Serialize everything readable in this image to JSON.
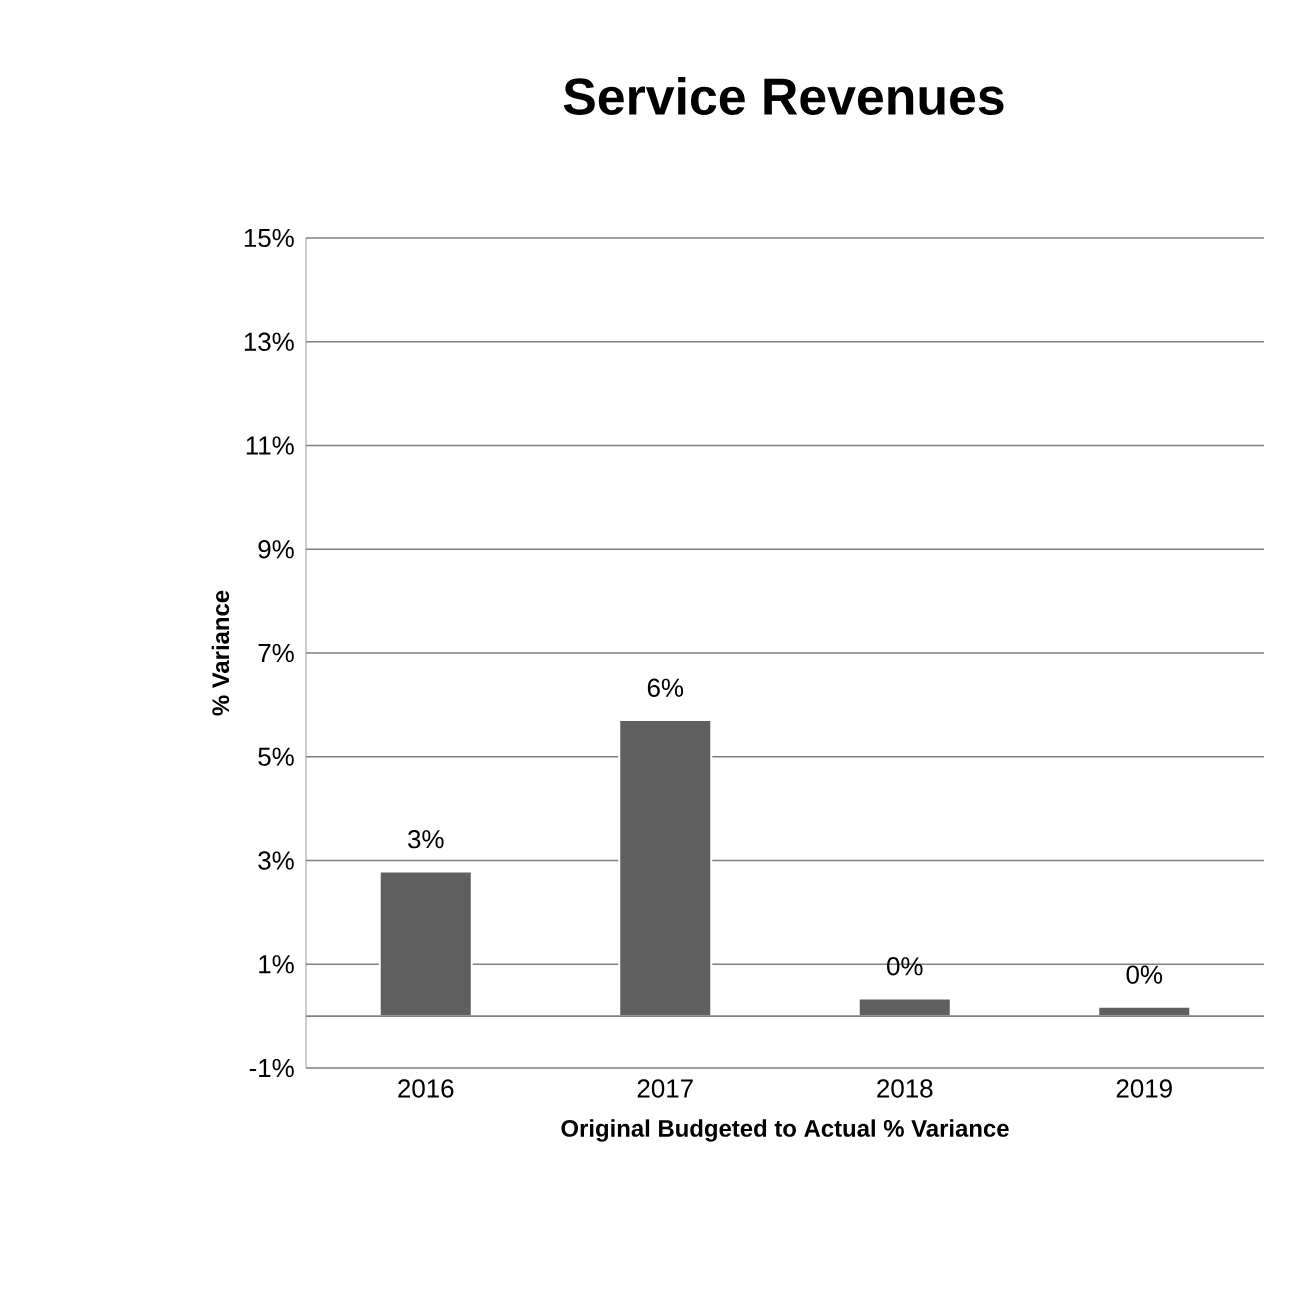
{
  "chart_data": {
    "type": "bar",
    "title": "Service Revenues",
    "xlabel": "Original Budgeted to Actual % Variance",
    "ylabel": "% Variance",
    "categories": [
      "2016",
      "2017",
      "2018",
      "2019"
    ],
    "values": [
      2.79,
      5.71,
      0.34,
      0.18
    ],
    "value_labels": [
      "3%",
      "6%",
      "0%",
      "0%"
    ],
    "color": "#5f5f5f",
    "ylim": [
      -1,
      15
    ],
    "yticks": [
      {
        "value": -1,
        "label": "-1%"
      },
      {
        "value": 1,
        "label": "1%"
      },
      {
        "value": 3,
        "label": "3%"
      },
      {
        "value": 5,
        "label": "5%"
      },
      {
        "value": 7,
        "label": "7%"
      },
      {
        "value": 9,
        "label": "9%"
      },
      {
        "value": 11,
        "label": "11%"
      },
      {
        "value": 13,
        "label": "13%"
      },
      {
        "value": 15,
        "label": "15%"
      }
    ],
    "grid": "y"
  }
}
